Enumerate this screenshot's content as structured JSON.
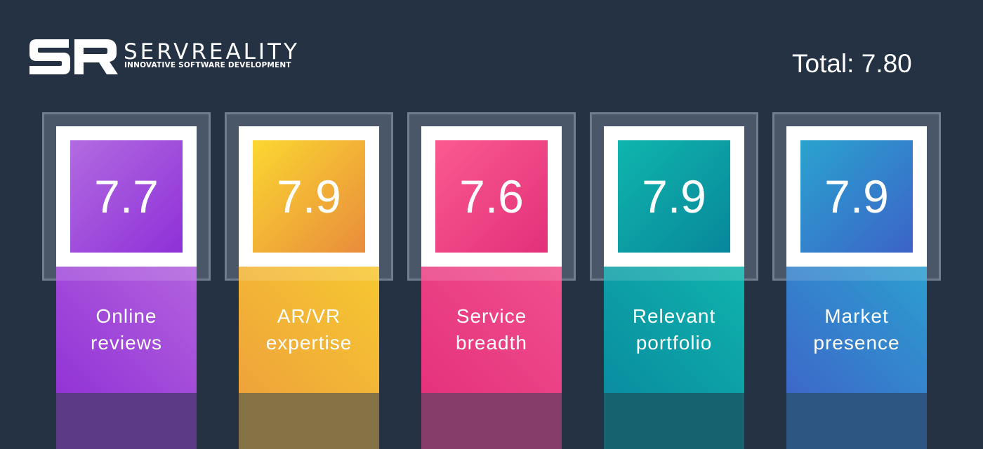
{
  "brand": {
    "name": "SERVREALITY",
    "tagline": "INNOVATIVE SOFTWARE DEVELOPMENT",
    "monogram": "SR"
  },
  "total": "Total: 7.80",
  "cards": [
    {
      "score": "7.7",
      "label_line1": "Online",
      "label_line2": "reviews",
      "colors": {
        "score_from": "#b26be0",
        "score_to": "#8e30d8",
        "label_from": "#9234d6",
        "label_to": "#b262de",
        "foot": "#5c3a86"
      }
    },
    {
      "score": "7.9",
      "label_line1": "AR/VR",
      "label_line2": "expertise",
      "colors": {
        "score_from": "#fbd731",
        "score_to": "#e98c3c",
        "label_from": "#eea33a",
        "label_to": "#f7c832",
        "foot": "#857244"
      }
    },
    {
      "score": "7.6",
      "label_line1": "Service",
      "label_line2": "breadth",
      "colors": {
        "score_from": "#fa5a90",
        "score_to": "#e3307a",
        "label_from": "#e5327c",
        "label_to": "#f04f8c",
        "foot": "#863c68"
      }
    },
    {
      "score": "7.9",
      "label_line1": "Relevant",
      "label_line2": "portfolio",
      "colors": {
        "score_from": "#0fb5ad",
        "score_to": "#08879b",
        "label_from": "#0a8da0",
        "label_to": "#0fb3ad",
        "foot": "#17626f"
      }
    },
    {
      "score": "7.9",
      "label_line1": "Market",
      "label_line2": "presence",
      "colors": {
        "score_from": "#2aa3cf",
        "score_to": "#3c63c8",
        "label_from": "#3d68c9",
        "label_to": "#2c9ed0",
        "foot": "#2c5582"
      }
    }
  ]
}
